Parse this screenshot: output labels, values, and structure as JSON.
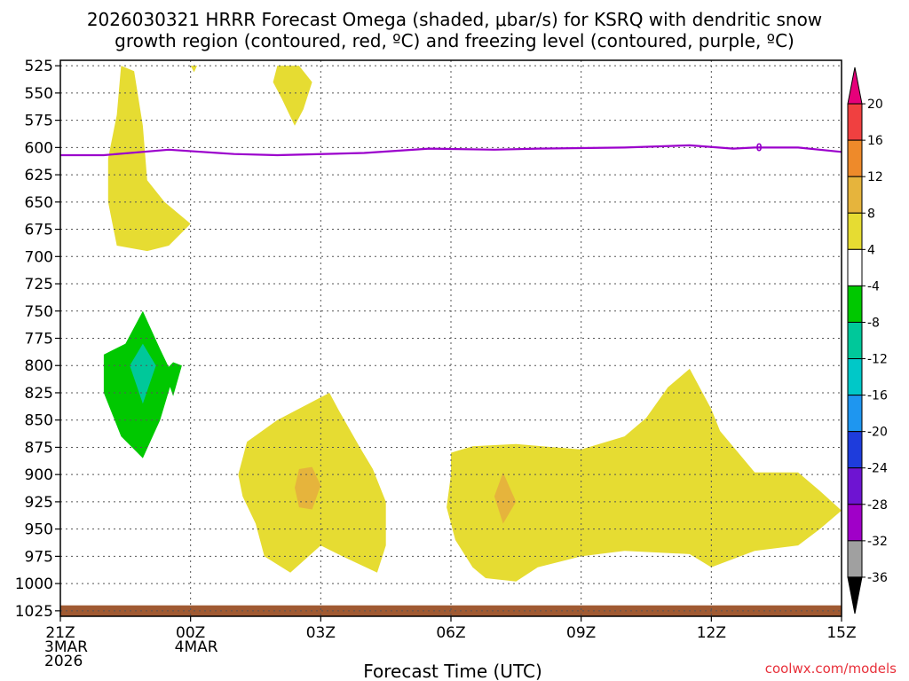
{
  "chart_data": {
    "type": "contour",
    "title_line1": "2026030321 HRRR Forecast Omega (shaded, μbar/s) for KSRQ with dendritic snow",
    "title_line2": "growth region (contoured, red, ºC) and freezing level (contoured, purple, ºC)",
    "xlabel": "Forecast Time (UTC)",
    "credit": "coolwx.com/models",
    "x_range": [
      0,
      18
    ],
    "x_ticks": [
      {
        "t": 0,
        "lines": [
          "21Z",
          "3MAR",
          "2026"
        ]
      },
      {
        "t": 3,
        "lines": [
          "00Z",
          "4MAR"
        ]
      },
      {
        "t": 6,
        "lines": [
          "03Z"
        ]
      },
      {
        "t": 9,
        "lines": [
          "06Z"
        ]
      },
      {
        "t": 12,
        "lines": [
          "09Z"
        ]
      },
      {
        "t": 15,
        "lines": [
          "12Z"
        ]
      },
      {
        "t": 18,
        "lines": [
          "15Z"
        ]
      }
    ],
    "y_range_hpa": [
      520,
      1030
    ],
    "y_ticks": [
      "525",
      "550",
      "575",
      "600",
      "625",
      "650",
      "675",
      "700",
      "725",
      "750",
      "775",
      "800",
      "825",
      "850",
      "875",
      "900",
      "925",
      "950",
      "975",
      "1000",
      "1025"
    ],
    "colorbar": {
      "levels": [
        "20",
        "16",
        "12",
        "8",
        "4",
        "-4",
        "-8",
        "-12",
        "-16",
        "-20",
        "-24",
        "-28",
        "-32",
        "-36"
      ],
      "colors": [
        "#e6007a",
        "#f04040",
        "#ee8a2a",
        "#e6b43c",
        "#e6dc32",
        "#ffffff",
        "#00c800",
        "#00c89a",
        "#00c8c8",
        "#1e96f0",
        "#1e3cdc",
        "#6e14d2",
        "#a000c8",
        "#a0a0a0",
        "#000000"
      ]
    },
    "freezing_level": {
      "label": "0",
      "color": "#9b00cc",
      "points": [
        [
          0,
          607
        ],
        [
          1,
          607
        ],
        [
          2.5,
          602
        ],
        [
          4,
          606
        ],
        [
          5,
          607
        ],
        [
          7,
          605
        ],
        [
          8.5,
          601
        ],
        [
          10,
          602
        ],
        [
          11,
          601
        ],
        [
          13,
          600
        ],
        [
          14.5,
          598
        ],
        [
          15.5,
          601
        ],
        [
          16,
          600
        ],
        [
          17,
          600
        ],
        [
          18,
          604
        ]
      ]
    },
    "omega_regions": [
      {
        "name": "updraft-strong",
        "value_range": "-8 to -4",
        "color": "#00c800",
        "points": [
          [
            1.0,
            790
          ],
          [
            1.5,
            780
          ],
          [
            1.9,
            750
          ],
          [
            2.3,
            785
          ],
          [
            2.6,
            810
          ],
          [
            2.3,
            850
          ],
          [
            1.9,
            885
          ],
          [
            1.4,
            865
          ],
          [
            1.0,
            825
          ]
        ]
      },
      {
        "name": "updraft-core",
        "value_range": "-12 to -8",
        "color": "#00c89a",
        "points": [
          [
            1.6,
            800
          ],
          [
            1.9,
            780
          ],
          [
            2.2,
            800
          ],
          [
            1.9,
            835
          ]
        ]
      },
      {
        "name": "updraft-small",
        "value_range": "-8 to -4",
        "color": "#00c800",
        "points": [
          [
            2.4,
            805
          ],
          [
            2.6,
            797
          ],
          [
            2.8,
            800
          ],
          [
            2.6,
            828
          ]
        ]
      },
      {
        "name": "subsidence-upper-column",
        "value_range": "4 to 8",
        "color": "#e6dc32",
        "points": [
          [
            1.4,
            525
          ],
          [
            1.7,
            530
          ],
          [
            1.9,
            580
          ],
          [
            2.0,
            630
          ],
          [
            2.4,
            650
          ],
          [
            3.0,
            670
          ],
          [
            2.5,
            690
          ],
          [
            2.0,
            695
          ],
          [
            1.3,
            690
          ],
          [
            1.1,
            650
          ],
          [
            1.1,
            610
          ],
          [
            1.3,
            570
          ]
        ]
      },
      {
        "name": "subsidence-top-mid",
        "value_range": "4 to 8",
        "color": "#e6dc32",
        "points": [
          [
            5.0,
            525
          ],
          [
            5.5,
            525
          ],
          [
            5.8,
            540
          ],
          [
            5.6,
            565
          ],
          [
            5.4,
            580
          ],
          [
            5.1,
            555
          ],
          [
            4.9,
            540
          ]
        ]
      },
      {
        "name": "subsidence-top-sliver",
        "value_range": "4 to 8",
        "color": "#e6dc32",
        "points": [
          [
            3.0,
            525
          ],
          [
            3.15,
            525
          ],
          [
            3.08,
            531
          ]
        ]
      },
      {
        "name": "subsidence-low-left",
        "value_range": "4 to 8",
        "color": "#e6dc32",
        "points": [
          [
            5.0,
            850
          ],
          [
            6.2,
            825
          ],
          [
            6.4,
            840
          ],
          [
            6.9,
            875
          ],
          [
            7.2,
            895
          ],
          [
            7.5,
            925
          ],
          [
            7.5,
            965
          ],
          [
            7.3,
            990
          ],
          [
            6.5,
            975
          ],
          [
            6.0,
            965
          ],
          [
            5.3,
            990
          ],
          [
            4.7,
            975
          ],
          [
            4.5,
            945
          ],
          [
            4.2,
            920
          ],
          [
            4.1,
            900
          ],
          [
            4.3,
            870
          ]
        ]
      },
      {
        "name": "subsidence-core-left",
        "value_range": "8 to 12",
        "color": "#e6b43c",
        "points": [
          [
            5.5,
            895
          ],
          [
            5.8,
            893
          ],
          [
            6.0,
            910
          ],
          [
            5.8,
            932
          ],
          [
            5.5,
            930
          ],
          [
            5.4,
            912
          ]
        ]
      },
      {
        "name": "subsidence-low-right",
        "value_range": "4 to 8",
        "color": "#e6dc32",
        "points": [
          [
            9.0,
            880
          ],
          [
            9.5,
            874
          ],
          [
            10.5,
            872
          ],
          [
            12.0,
            877
          ],
          [
            13.0,
            865
          ],
          [
            13.5,
            848
          ],
          [
            14.0,
            820
          ],
          [
            14.5,
            803
          ],
          [
            15.0,
            840
          ],
          [
            15.2,
            860
          ],
          [
            16.0,
            898
          ],
          [
            17.0,
            898
          ],
          [
            17.5,
            915
          ],
          [
            18.0,
            933
          ],
          [
            17.5,
            950
          ],
          [
            17.0,
            965
          ],
          [
            16.0,
            970
          ],
          [
            15.0,
            985
          ],
          [
            14.5,
            973
          ],
          [
            13.0,
            970
          ],
          [
            12.0,
            975
          ],
          [
            11.0,
            985
          ],
          [
            10.5,
            998
          ],
          [
            9.8,
            995
          ],
          [
            9.5,
            985
          ],
          [
            9.1,
            960
          ],
          [
            8.9,
            930
          ],
          [
            9.0,
            900
          ]
        ]
      },
      {
        "name": "subsidence-core-right",
        "value_range": "8 to 12",
        "color": "#e6b43c",
        "points": [
          [
            10.0,
            920
          ],
          [
            10.2,
            898
          ],
          [
            10.5,
            925
          ],
          [
            10.2,
            945
          ]
        ]
      }
    ],
    "terrain_band": {
      "color": "#a05a32",
      "top_hpa": 1020,
      "bottom_hpa": 1030
    }
  }
}
